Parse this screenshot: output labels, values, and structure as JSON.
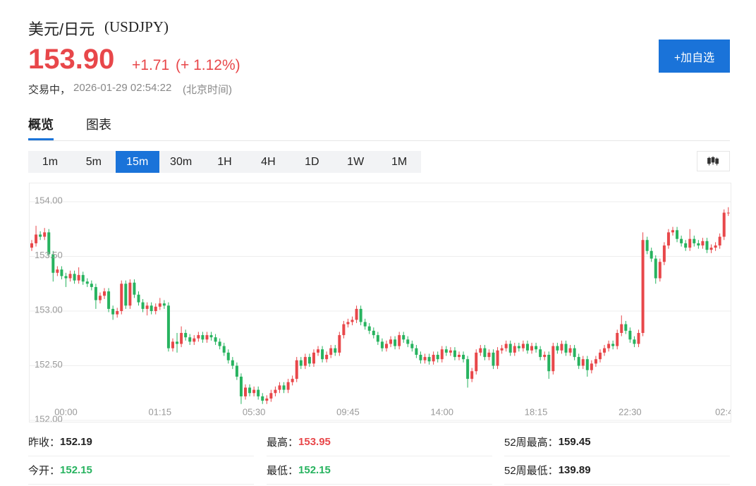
{
  "header": {
    "name": "美元/日元",
    "code": "(USDJPY)",
    "price": "153.90",
    "change": "+1.71",
    "change_pct": "(+ 1.12%)",
    "status": "交易中，",
    "time": "2026-01-29 02:54:22",
    "timezone": "(北京时间)",
    "button": "+加自选"
  },
  "tabs": [
    "概览",
    "图表"
  ],
  "intervals": [
    "1m",
    "5m",
    "15m",
    "30m",
    "1H",
    "4H",
    "1D",
    "1W",
    "1M"
  ],
  "stats": [
    [
      {
        "label": "昨收：",
        "value": "152.19"
      },
      {
        "label": "最高：",
        "value": "153.95"
      },
      {
        "label": "52周最高：",
        "value": "159.45"
      }
    ],
    [
      {
        "label": "今开：",
        "value": "152.15"
      },
      {
        "label": "最低：",
        "value": "152.15"
      },
      {
        "label": "52周最低：",
        "value": "139.89"
      }
    ]
  ],
  "chart_data": {
    "type": "candlestick",
    "up_color": "#e8474a",
    "down_color": "#27b35f",
    "grid": true,
    "ylim": [
      152.0,
      154.15
    ],
    "yticks": [
      {
        "value": 152,
        "label": "152.00"
      },
      {
        "value": 152.5,
        "label": "152.50"
      },
      {
        "value": 153,
        "label": "153.00"
      },
      {
        "value": 153.5,
        "label": "153.50"
      },
      {
        "value": 154,
        "label": "154.00"
      }
    ],
    "categories": [
      null,
      null,
      null,
      null,
      null,
      null,
      null,
      null,
      "00:00",
      null,
      null,
      null,
      null,
      null,
      null,
      null,
      null,
      null,
      null,
      null,
      null,
      null,
      null,
      null,
      null,
      null,
      null,
      null,
      null,
      null,
      "01:15",
      null,
      null,
      null,
      null,
      null,
      null,
      null,
      null,
      null,
      null,
      null,
      null,
      null,
      null,
      null,
      null,
      null,
      null,
      null,
      null,
      null,
      "05:30",
      null,
      null,
      null,
      null,
      null,
      null,
      null,
      null,
      null,
      null,
      null,
      null,
      null,
      null,
      null,
      null,
      null,
      null,
      null,
      null,
      null,
      "09:45",
      null,
      null,
      null,
      null,
      null,
      null,
      null,
      null,
      null,
      null,
      null,
      null,
      null,
      null,
      null,
      null,
      null,
      null,
      null,
      null,
      null,
      "14:00",
      null,
      null,
      null,
      null,
      null,
      null,
      null,
      null,
      null,
      null,
      null,
      null,
      null,
      null,
      null,
      null,
      null,
      null,
      null,
      null,
      null,
      "18:15",
      null,
      null,
      null,
      null,
      null,
      null,
      null,
      null,
      null,
      null,
      null,
      null,
      null,
      null,
      null,
      null,
      null,
      null,
      null,
      null,
      null,
      "22:30",
      null,
      null,
      null,
      null,
      null,
      null,
      null,
      null,
      null,
      null,
      null,
      null,
      null,
      null,
      null,
      null,
      null,
      null,
      null,
      null,
      null,
      "02:4",
      null
    ],
    "open": [
      153.58,
      153.62,
      153.7,
      153.68,
      153.72,
      153.52,
      153.35,
      153.38,
      153.32,
      153.3,
      153.34,
      153.28,
      153.33,
      153.27,
      153.25,
      153.22,
      153.1,
      153.14,
      153.18,
      153.02,
      152.97,
      153.0,
      153.25,
      153.05,
      153.26,
      153.15,
      153.08,
      153.02,
      153.05,
      153.0,
      153.04,
      153.07,
      153.05,
      152.66,
      152.72,
      152.7,
      152.8,
      152.76,
      152.72,
      152.75,
      152.78,
      152.74,
      152.78,
      152.76,
      152.72,
      152.68,
      152.62,
      152.55,
      152.5,
      152.4,
      152.22,
      152.3,
      152.25,
      152.28,
      152.22,
      152.18,
      152.2,
      152.25,
      152.28,
      152.32,
      152.28,
      152.35,
      152.38,
      152.55,
      152.5,
      152.58,
      152.52,
      152.62,
      152.65,
      152.56,
      152.6,
      152.66,
      152.62,
      152.78,
      152.88,
      152.9,
      152.92,
      153.02,
      152.9,
      152.86,
      152.82,
      152.78,
      152.72,
      152.66,
      152.7,
      152.74,
      152.68,
      152.78,
      152.74,
      152.7,
      152.66,
      152.6,
      152.55,
      152.58,
      152.54,
      152.6,
      152.56,
      152.65,
      152.62,
      152.64,
      152.58,
      152.6,
      152.56,
      152.38,
      152.45,
      152.62,
      152.66,
      152.58,
      152.62,
      152.5,
      152.64,
      152.66,
      152.7,
      152.62,
      152.68,
      152.66,
      152.7,
      152.64,
      152.68,
      152.65,
      152.58,
      152.6,
      152.45,
      152.68,
      152.64,
      152.7,
      152.62,
      152.66,
      152.58,
      152.5,
      152.56,
      152.46,
      152.52,
      152.56,
      152.62,
      152.66,
      152.7,
      152.68,
      152.8,
      152.88,
      152.82,
      152.74,
      152.7,
      152.8,
      153.65,
      153.55,
      153.48,
      153.3,
      153.45,
      153.6,
      153.72,
      153.74,
      153.66,
      153.62,
      153.58,
      153.66,
      153.62,
      153.6,
      153.64,
      153.56,
      153.58,
      153.6,
      153.68,
      153.9
    ],
    "high": [
      153.65,
      153.78,
      153.73,
      153.76,
      153.75,
      153.55,
      153.41,
      153.41,
      153.35,
      153.37,
      153.37,
      153.4,
      153.36,
      153.3,
      153.28,
      153.25,
      153.17,
      153.21,
      153.21,
      153.05,
      153.03,
      153.28,
      153.28,
      153.29,
      153.29,
      153.18,
      153.11,
      153.08,
      153.08,
      153.07,
      153.12,
      153.1,
      153.08,
      152.75,
      152.8,
      152.86,
      152.83,
      152.79,
      152.78,
      152.81,
      152.81,
      152.81,
      152.81,
      152.79,
      152.75,
      152.71,
      152.65,
      152.58,
      152.53,
      152.43,
      152.33,
      152.33,
      152.31,
      152.31,
      152.25,
      152.23,
      152.28,
      152.31,
      152.35,
      152.35,
      152.38,
      152.41,
      152.58,
      152.58,
      152.61,
      152.61,
      152.65,
      152.68,
      152.68,
      152.63,
      152.69,
      152.69,
      152.81,
      152.91,
      152.93,
      152.95,
      153.05,
      153.05,
      152.93,
      152.89,
      152.85,
      152.81,
      152.75,
      152.73,
      152.77,
      152.77,
      152.81,
      152.81,
      152.77,
      152.73,
      152.69,
      152.63,
      152.61,
      152.61,
      152.63,
      152.63,
      152.68,
      152.68,
      152.67,
      152.67,
      152.63,
      152.63,
      152.59,
      152.48,
      152.65,
      152.69,
      152.69,
      152.65,
      152.65,
      152.67,
      152.69,
      152.73,
      152.73,
      152.71,
      152.71,
      152.73,
      152.73,
      152.71,
      152.71,
      152.68,
      152.63,
      152.63,
      152.71,
      152.71,
      152.73,
      152.73,
      152.69,
      152.69,
      152.61,
      152.59,
      152.59,
      152.55,
      152.59,
      152.65,
      152.69,
      152.73,
      152.73,
      152.83,
      152.96,
      152.91,
      152.85,
      152.77,
      152.83,
      153.72,
      153.68,
      153.58,
      153.51,
      153.48,
      153.63,
      153.75,
      153.77,
      153.77,
      153.69,
      153.65,
      153.75,
      153.69,
      153.65,
      153.67,
      153.67,
      153.61,
      153.63,
      153.71,
      153.93,
      153.95
    ],
    "low": [
      153.55,
      153.59,
      153.65,
      153.65,
      153.49,
      153.27,
      153.32,
      153.29,
      153.22,
      153.27,
      153.25,
      153.25,
      153.24,
      153.22,
      153.19,
      153.02,
      153.07,
      153.11,
      152.99,
      152.92,
      152.94,
      152.97,
      153.02,
      153.02,
      153.12,
      153.05,
      152.99,
      152.96,
      152.97,
      152.97,
      153.01,
      153.02,
      152.63,
      152.63,
      152.62,
      152.67,
      152.73,
      152.69,
      152.69,
      152.72,
      152.71,
      152.71,
      152.73,
      152.69,
      152.65,
      152.59,
      152.52,
      152.47,
      152.37,
      152.15,
      152.19,
      152.22,
      152.22,
      152.19,
      152.15,
      152.15,
      152.17,
      152.22,
      152.25,
      152.25,
      152.25,
      152.32,
      152.35,
      152.47,
      152.47,
      152.49,
      152.49,
      152.59,
      152.53,
      152.53,
      152.57,
      152.59,
      152.59,
      152.75,
      152.85,
      152.87,
      152.89,
      152.87,
      152.83,
      152.79,
      152.75,
      152.69,
      152.63,
      152.63,
      152.67,
      152.65,
      152.65,
      152.71,
      152.67,
      152.63,
      152.57,
      152.52,
      152.52,
      152.51,
      152.51,
      152.53,
      152.53,
      152.59,
      152.59,
      152.55,
      152.55,
      152.53,
      152.3,
      152.35,
      152.42,
      152.59,
      152.55,
      152.55,
      152.47,
      152.47,
      152.61,
      152.63,
      152.59,
      152.59,
      152.63,
      152.63,
      152.61,
      152.61,
      152.62,
      152.55,
      152.55,
      152.38,
      152.42,
      152.61,
      152.61,
      152.59,
      152.59,
      152.55,
      152.47,
      152.47,
      152.4,
      152.43,
      152.49,
      152.53,
      152.59,
      152.63,
      152.65,
      152.65,
      152.77,
      152.79,
      152.71,
      152.67,
      152.67,
      152.77,
      153.52,
      153.45,
      153.25,
      153.27,
      153.42,
      153.57,
      153.69,
      153.63,
      153.59,
      153.55,
      153.55,
      153.59,
      153.57,
      153.57,
      153.53,
      153.53,
      153.55,
      153.57,
      153.65,
      153.87
    ],
    "close": [
      153.62,
      153.7,
      153.68,
      153.72,
      153.52,
      153.35,
      153.38,
      153.32,
      153.3,
      153.34,
      153.28,
      153.33,
      153.27,
      153.25,
      153.22,
      153.1,
      153.14,
      153.18,
      153.02,
      152.97,
      153.0,
      153.25,
      153.05,
      153.26,
      153.15,
      153.08,
      153.02,
      153.05,
      153.0,
      153.04,
      153.07,
      153.05,
      152.66,
      152.72,
      152.7,
      152.8,
      152.76,
      152.72,
      152.75,
      152.78,
      152.74,
      152.78,
      152.76,
      152.72,
      152.68,
      152.62,
      152.55,
      152.5,
      152.4,
      152.22,
      152.3,
      152.25,
      152.28,
      152.22,
      152.18,
      152.2,
      152.25,
      152.28,
      152.32,
      152.28,
      152.35,
      152.38,
      152.55,
      152.5,
      152.58,
      152.52,
      152.62,
      152.65,
      152.56,
      152.6,
      152.66,
      152.62,
      152.78,
      152.88,
      152.9,
      152.92,
      153.02,
      152.9,
      152.86,
      152.82,
      152.78,
      152.72,
      152.66,
      152.7,
      152.74,
      152.68,
      152.78,
      152.74,
      152.7,
      152.66,
      152.6,
      152.55,
      152.58,
      152.54,
      152.6,
      152.56,
      152.65,
      152.62,
      152.64,
      152.58,
      152.6,
      152.56,
      152.38,
      152.45,
      152.62,
      152.66,
      152.58,
      152.62,
      152.5,
      152.64,
      152.66,
      152.7,
      152.62,
      152.68,
      152.66,
      152.7,
      152.64,
      152.68,
      152.65,
      152.58,
      152.6,
      152.45,
      152.68,
      152.64,
      152.7,
      152.62,
      152.66,
      152.58,
      152.5,
      152.56,
      152.46,
      152.52,
      152.56,
      152.62,
      152.66,
      152.7,
      152.68,
      152.8,
      152.88,
      152.82,
      152.74,
      152.7,
      152.8,
      153.65,
      153.55,
      153.48,
      153.3,
      153.45,
      153.6,
      153.72,
      153.74,
      153.66,
      153.62,
      153.58,
      153.66,
      153.62,
      153.6,
      153.64,
      153.56,
      153.58,
      153.6,
      153.68,
      153.9,
      153.9
    ]
  }
}
